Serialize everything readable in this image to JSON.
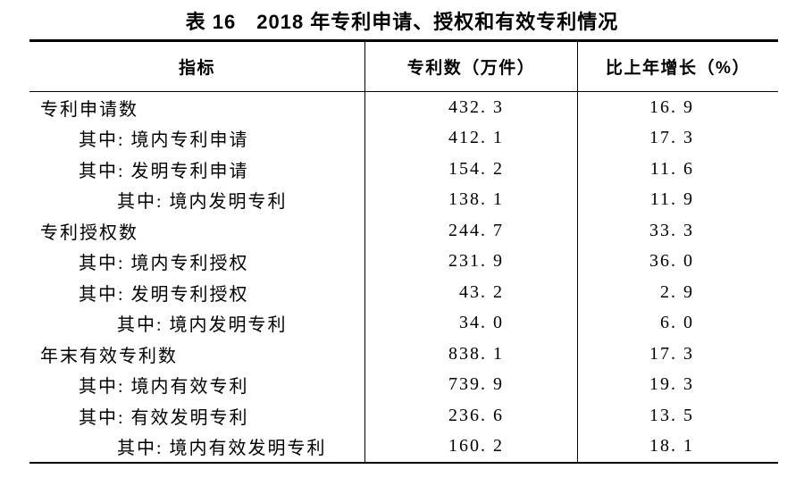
{
  "title": "表 16　2018 年专利申请、授权和有效专利情况",
  "table": {
    "headers": {
      "indicator": "指标",
      "count": "专利数（万件）",
      "growth": "比上年增长（%）"
    },
    "rows": [
      {
        "indicator": "专利申请数",
        "indent": 0,
        "count": "432. 3",
        "growth": "16. 9"
      },
      {
        "indicator": "其中: 境内专利申请",
        "indent": 1,
        "count": "412. 1",
        "growth": "17. 3"
      },
      {
        "indicator": "其中: 发明专利申请",
        "indent": 1,
        "count": "154. 2",
        "growth": "11. 6"
      },
      {
        "indicator": "其中: 境内发明专利",
        "indent": 2,
        "count": "138. 1",
        "growth": "11. 9"
      },
      {
        "indicator": "专利授权数",
        "indent": 0,
        "count": "244. 7",
        "growth": "33. 3"
      },
      {
        "indicator": "其中: 境内专利授权",
        "indent": 1,
        "count": "231. 9",
        "growth": "36. 0"
      },
      {
        "indicator": "其中: 发明专利授权",
        "indent": 1,
        "count": "43. 2",
        "growth": "2. 9"
      },
      {
        "indicator": "其中: 境内发明专利",
        "indent": 2,
        "count": "34. 0",
        "growth": "6. 0"
      },
      {
        "indicator": "年末有效专利数",
        "indent": 0,
        "count": "838. 1",
        "growth": "17. 3"
      },
      {
        "indicator": "其中: 境内有效专利",
        "indent": 1,
        "count": "739. 9",
        "growth": "19. 3"
      },
      {
        "indicator": "其中: 有效发明专利",
        "indent": 1,
        "count": "236. 6",
        "growth": "13. 5"
      },
      {
        "indicator": "其中: 境内有效发明专利",
        "indent": 2,
        "count": "160. 2",
        "growth": "18. 1"
      }
    ]
  },
  "chart_data": {
    "type": "table",
    "title": "表16 2018年专利申请、授权和有效专利情况",
    "columns": [
      "指标",
      "专利数（万件）",
      "比上年增长（%）"
    ],
    "rows": [
      [
        "专利申请数",
        432.3,
        16.9
      ],
      [
        "其中: 境内专利申请",
        412.1,
        17.3
      ],
      [
        "其中: 发明专利申请",
        154.2,
        11.6
      ],
      [
        "其中: 境内发明专利",
        138.1,
        11.9
      ],
      [
        "专利授权数",
        244.7,
        33.3
      ],
      [
        "其中: 境内专利授权",
        231.9,
        36.0
      ],
      [
        "其中: 发明专利授权",
        43.2,
        2.9
      ],
      [
        "其中: 境内发明专利",
        34.0,
        6.0
      ],
      [
        "年末有效专利数",
        838.1,
        17.3
      ],
      [
        "其中: 境内有效专利",
        739.9,
        19.3
      ],
      [
        "其中: 有效发明专利",
        236.6,
        13.5
      ],
      [
        "其中: 境内有效发明专利",
        160.2,
        18.1
      ]
    ]
  }
}
